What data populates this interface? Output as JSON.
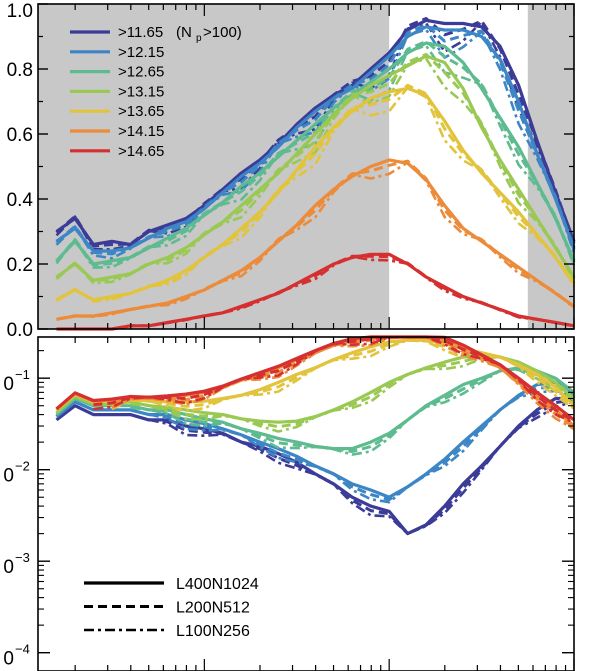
{
  "chart_data": [
    {
      "type": "line",
      "panel": "top",
      "ylim": [
        0,
        1.0
      ],
      "xlim_log10": [
        -1.9,
        1.0
      ],
      "yticks": [
        0.0,
        0.2,
        0.4,
        0.6,
        0.8,
        1.0
      ],
      "ytick_labels": [
        "0.0",
        "0.2",
        "0.4",
        "0.6",
        "0.8",
        "1.0"
      ],
      "shaded_x_log10": [
        [
          -1.9,
          0.0
        ],
        [
          0.75,
          1.0
        ]
      ],
      "grid": false,
      "legend_position": "top-left",
      "x": [
        -1.8,
        -1.7,
        -1.6,
        -1.5,
        -1.4,
        -1.3,
        -1.2,
        -1.1,
        -1.0,
        -0.9,
        -0.8,
        -0.7,
        -0.6,
        -0.5,
        -0.4,
        -0.3,
        -0.2,
        -0.1,
        0.0,
        0.1,
        0.2,
        0.3,
        0.4,
        0.5,
        0.6,
        0.7,
        0.8,
        0.9,
        1.0
      ],
      "series": [
        {
          "name": ">11.65",
          "color": "#3b3b98",
          "style": "solid",
          "values": [
            0.3,
            0.34,
            0.26,
            0.27,
            0.26,
            0.3,
            0.32,
            0.34,
            0.38,
            0.43,
            0.48,
            0.52,
            0.57,
            0.63,
            0.68,
            0.72,
            0.75,
            0.8,
            0.85,
            0.92,
            0.95,
            0.94,
            0.94,
            0.93,
            0.87,
            0.75,
            0.58,
            0.42,
            0.27
          ]
        },
        {
          "name": ">12.15",
          "color": "#3d86c6",
          "style": "solid",
          "values": [
            0.27,
            0.31,
            0.24,
            0.24,
            0.25,
            0.28,
            0.31,
            0.33,
            0.37,
            0.42,
            0.47,
            0.51,
            0.56,
            0.62,
            0.67,
            0.71,
            0.74,
            0.79,
            0.84,
            0.9,
            0.93,
            0.92,
            0.92,
            0.9,
            0.83,
            0.7,
            0.54,
            0.4,
            0.25
          ]
        },
        {
          "name": ">12.65",
          "color": "#5dbb8f",
          "style": "solid",
          "values": [
            0.21,
            0.27,
            0.2,
            0.21,
            0.22,
            0.25,
            0.28,
            0.31,
            0.35,
            0.39,
            0.44,
            0.48,
            0.53,
            0.58,
            0.63,
            0.68,
            0.72,
            0.76,
            0.8,
            0.85,
            0.88,
            0.87,
            0.82,
            0.74,
            0.65,
            0.56,
            0.45,
            0.34,
            0.21
          ]
        },
        {
          "name": ">13.15",
          "color": "#9ac953",
          "style": "solid",
          "values": [
            0.16,
            0.2,
            0.15,
            0.16,
            0.17,
            0.2,
            0.22,
            0.25,
            0.29,
            0.33,
            0.38,
            0.43,
            0.48,
            0.54,
            0.6,
            0.66,
            0.71,
            0.75,
            0.78,
            0.81,
            0.84,
            0.82,
            0.74,
            0.62,
            0.52,
            0.43,
            0.34,
            0.25,
            0.16
          ]
        },
        {
          "name": ">13.65",
          "color": "#e2c33c",
          "style": "solid",
          "values": [
            0.09,
            0.12,
            0.09,
            0.1,
            0.11,
            0.13,
            0.15,
            0.18,
            0.22,
            0.26,
            0.31,
            0.36,
            0.42,
            0.49,
            0.56,
            0.62,
            0.67,
            0.71,
            0.73,
            0.74,
            0.72,
            0.64,
            0.55,
            0.48,
            0.42,
            0.36,
            0.29,
            0.22,
            0.14
          ]
        },
        {
          "name": ">14.15",
          "color": "#ec8b3a",
          "style": "solid",
          "values": [
            0.03,
            0.04,
            0.04,
            0.05,
            0.06,
            0.07,
            0.08,
            0.1,
            0.12,
            0.15,
            0.18,
            0.22,
            0.27,
            0.32,
            0.38,
            0.43,
            0.47,
            0.5,
            0.52,
            0.51,
            0.46,
            0.38,
            0.31,
            0.27,
            0.23,
            0.19,
            0.15,
            0.11,
            0.07
          ]
        },
        {
          "name": ">14.65",
          "color": "#d62f2f",
          "style": "solid",
          "values": [
            0.0,
            0.0,
            0.0,
            0.0,
            0.01,
            0.01,
            0.02,
            0.03,
            0.04,
            0.05,
            0.07,
            0.09,
            0.11,
            0.14,
            0.17,
            0.2,
            0.22,
            0.23,
            0.23,
            0.2,
            0.16,
            0.13,
            0.1,
            0.08,
            0.06,
            0.04,
            0.03,
            0.02,
            0.01
          ]
        }
      ]
    },
    {
      "type": "line",
      "panel": "bottom",
      "yscale": "log",
      "ylim_log10": [
        -4.2,
        -0.55
      ],
      "xlim_log10": [
        -1.9,
        1.0
      ],
      "yticks_log10": [
        -1,
        -2,
        -3,
        -4
      ],
      "ytick_labels": [
        "0",
        "0",
        "0",
        "0"
      ],
      "ytick_exponents": [
        "−1",
        "−2",
        "−3",
        "−4"
      ],
      "grid": false,
      "legend_position": "bottom-left",
      "x": [
        -1.8,
        -1.7,
        -1.6,
        -1.5,
        -1.4,
        -1.3,
        -1.2,
        -1.1,
        -1.0,
        -0.9,
        -0.8,
        -0.7,
        -0.6,
        -0.5,
        -0.4,
        -0.3,
        -0.2,
        -0.1,
        0.0,
        0.1,
        0.2,
        0.3,
        0.4,
        0.5,
        0.6,
        0.7,
        0.8,
        0.9,
        1.0
      ],
      "series": [
        {
          "name": ">11.65",
          "color": "#3b3b98",
          "style": "solid",
          "values": [
            0.035,
            0.05,
            0.04,
            0.04,
            0.04,
            0.035,
            0.035,
            0.03,
            0.028,
            0.025,
            0.02,
            0.018,
            0.015,
            0.012,
            0.009,
            0.007,
            0.005,
            0.004,
            0.0035,
            0.002,
            0.0025,
            0.004,
            0.007,
            0.011,
            0.018,
            0.03,
            0.045,
            0.06,
            0.06
          ]
        },
        {
          "name": ">12.15",
          "color": "#3d86c6",
          "style": "solid",
          "values": [
            0.038,
            0.055,
            0.045,
            0.045,
            0.045,
            0.04,
            0.04,
            0.035,
            0.032,
            0.028,
            0.024,
            0.02,
            0.017,
            0.014,
            0.011,
            0.009,
            0.007,
            0.006,
            0.005,
            0.0065,
            0.009,
            0.013,
            0.02,
            0.03,
            0.045,
            0.065,
            0.085,
            0.09,
            0.07
          ]
        },
        {
          "name": ">12.65",
          "color": "#5dbb8f",
          "style": "solid",
          "values": [
            0.04,
            0.06,
            0.05,
            0.05,
            0.05,
            0.045,
            0.045,
            0.04,
            0.036,
            0.033,
            0.028,
            0.025,
            0.022,
            0.02,
            0.018,
            0.017,
            0.017,
            0.02,
            0.025,
            0.035,
            0.05,
            0.065,
            0.085,
            0.1,
            0.12,
            0.13,
            0.12,
            0.1,
            0.07
          ]
        },
        {
          "name": ">13.15",
          "color": "#9ac953",
          "style": "solid",
          "values": [
            0.042,
            0.063,
            0.052,
            0.052,
            0.055,
            0.05,
            0.048,
            0.045,
            0.042,
            0.04,
            0.036,
            0.034,
            0.033,
            0.034,
            0.038,
            0.045,
            0.055,
            0.07,
            0.09,
            0.11,
            0.13,
            0.15,
            0.17,
            0.18,
            0.17,
            0.15,
            0.12,
            0.09,
            0.06
          ]
        },
        {
          "name": ">13.65",
          "color": "#e2c33c",
          "style": "solid",
          "values": [
            0.045,
            0.067,
            0.055,
            0.056,
            0.06,
            0.056,
            0.055,
            0.055,
            0.056,
            0.06,
            0.065,
            0.075,
            0.09,
            0.11,
            0.13,
            0.16,
            0.19,
            0.22,
            0.25,
            0.26,
            0.26,
            0.24,
            0.21,
            0.19,
            0.17,
            0.14,
            0.11,
            0.08,
            0.05
          ]
        },
        {
          "name": ">14.15",
          "color": "#ec8b3a",
          "style": "solid",
          "values": [
            0.046,
            0.068,
            0.056,
            0.058,
            0.062,
            0.06,
            0.062,
            0.065,
            0.07,
            0.08,
            0.095,
            0.11,
            0.13,
            0.16,
            0.19,
            0.23,
            0.26,
            0.29,
            0.31,
            0.32,
            0.3,
            0.27,
            0.22,
            0.17,
            0.13,
            0.09,
            0.065,
            0.045,
            0.03
          ]
        },
        {
          "name": ">14.65",
          "color": "#d62f2f",
          "style": "solid",
          "values": [
            0.046,
            0.069,
            0.057,
            0.059,
            0.063,
            0.062,
            0.064,
            0.067,
            0.072,
            0.082,
            0.098,
            0.115,
            0.135,
            0.165,
            0.2,
            0.24,
            0.27,
            0.3,
            0.32,
            0.33,
            0.31,
            0.28,
            0.23,
            0.18,
            0.14,
            0.1,
            0.07,
            0.05,
            0.035
          ]
        }
      ]
    }
  ],
  "legend": {
    "mass_entries": [
      {
        "label": ">11.65",
        "extra": "(N",
        "sub": "p",
        "extra2": ">100)",
        "color": "#3b3b98"
      },
      {
        "label": ">12.15",
        "color": "#3d86c6"
      },
      {
        "label": ">12.65",
        "color": "#5dbb8f"
      },
      {
        "label": ">13.15",
        "color": "#9ac953"
      },
      {
        "label": ">13.65",
        "color": "#e2c33c"
      },
      {
        "label": ">14.15",
        "color": "#ec8b3a"
      },
      {
        "label": ">14.65",
        "color": "#d62f2f"
      }
    ],
    "style_entries": [
      {
        "label": "L400N1024",
        "style": "solid"
      },
      {
        "label": "L200N512",
        "style": "dashed"
      },
      {
        "label": "L100N256",
        "style": "dashdot"
      }
    ]
  },
  "colors": {
    "shade": "#c8c8c8",
    "axis": "#000000"
  }
}
